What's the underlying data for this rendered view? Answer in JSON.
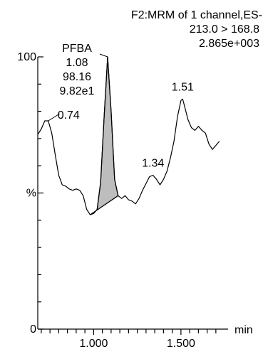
{
  "header": {
    "line1": "F2:MRM of 1 channel,ES-",
    "line2": "213.0 > 168.8",
    "line3": "2.865e+003"
  },
  "chart_data": {
    "type": "line",
    "title": "",
    "xlabel": "min",
    "ylabel": "%",
    "xlim": [
      0.68,
      1.77
    ],
    "ylim": [
      0,
      100
    ],
    "x_ticks": [
      1.0,
      1.5
    ],
    "x_tick_labels": [
      "1.000",
      "1.500"
    ],
    "x_minor_step": 0.05,
    "y_ticks": [
      0,
      50,
      100
    ],
    "y_tick_labels": [
      "0",
      "%",
      "100"
    ],
    "y_minor_step": 10,
    "series": [
      {
        "points": [
          [
            0.68,
            71.5
          ],
          [
            0.7,
            73.5
          ],
          [
            0.72,
            76.5
          ],
          [
            0.74,
            76.5
          ],
          [
            0.76,
            72
          ],
          [
            0.78,
            64
          ],
          [
            0.8,
            56.5
          ],
          [
            0.82,
            53
          ],
          [
            0.84,
            52.5
          ],
          [
            0.86,
            51.5
          ],
          [
            0.88,
            51
          ],
          [
            0.9,
            51.5
          ],
          [
            0.92,
            51
          ],
          [
            0.94,
            49
          ],
          [
            0.96,
            44
          ],
          [
            0.98,
            42
          ],
          [
            1.0,
            42.5
          ],
          [
            1.02,
            44
          ],
          [
            1.04,
            54
          ],
          [
            1.06,
            78
          ],
          [
            1.08,
            100
          ],
          [
            1.1,
            80
          ],
          [
            1.12,
            55
          ],
          [
            1.14,
            49
          ],
          [
            1.16,
            48
          ],
          [
            1.18,
            49
          ],
          [
            1.2,
            47.5
          ],
          [
            1.22,
            47
          ],
          [
            1.24,
            46
          ],
          [
            1.26,
            48
          ],
          [
            1.28,
            51
          ],
          [
            1.3,
            53.5
          ],
          [
            1.32,
            56
          ],
          [
            1.34,
            56.5
          ],
          [
            1.36,
            55
          ],
          [
            1.38,
            53
          ],
          [
            1.4,
            55
          ],
          [
            1.42,
            58
          ],
          [
            1.44,
            63
          ],
          [
            1.46,
            69
          ],
          [
            1.48,
            78
          ],
          [
            1.5,
            84
          ],
          [
            1.51,
            84.5
          ],
          [
            1.52,
            82
          ],
          [
            1.54,
            77
          ],
          [
            1.56,
            74
          ],
          [
            1.58,
            73
          ],
          [
            1.6,
            74.5
          ],
          [
            1.62,
            73
          ],
          [
            1.64,
            72
          ],
          [
            1.66,
            68
          ],
          [
            1.68,
            66
          ],
          [
            1.7,
            67.5
          ],
          [
            1.72,
            69
          ]
        ]
      }
    ],
    "shaded_peak": {
      "x_start": 0.98,
      "x_end": 1.14,
      "baseline": [
        [
          0.98,
          42
        ],
        [
          1.14,
          49
        ]
      ],
      "label_lines": [
        "PFBA",
        "1.08",
        "98.16",
        "9.82e1"
      ]
    },
    "peak_labels": [
      {
        "text": "0.74",
        "x": 0.74,
        "y": 76.5
      },
      {
        "text": "1.34",
        "x": 1.34,
        "y": 56.5
      },
      {
        "text": "1.51",
        "x": 1.51,
        "y": 84.5
      }
    ]
  }
}
